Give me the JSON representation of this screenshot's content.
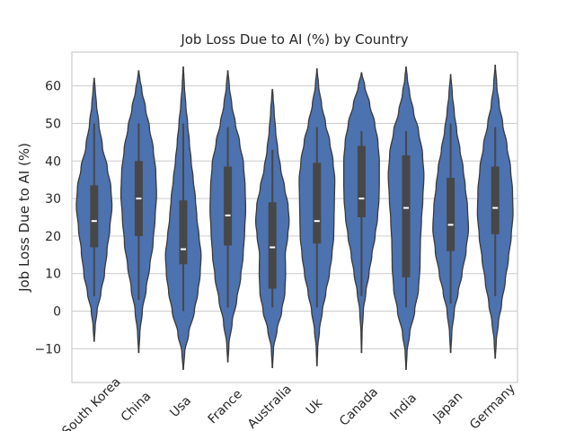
{
  "chart_data": {
    "type": "violin",
    "title": "Job Loss Due to AI (%) by Country",
    "xlabel": "",
    "ylabel": "Job Loss Due to AI (%)",
    "ylim": [
      -19,
      69
    ],
    "yticks": [
      -10,
      0,
      10,
      20,
      30,
      40,
      50,
      60
    ],
    "grid": true,
    "colors": {
      "violin_fill": "#4c72b0",
      "violin_edge": "#3a3a3a",
      "box": "#474747",
      "median": "#ffffff",
      "grid": "#cccccc",
      "frame": "#cccccc"
    },
    "categories": [
      "South Korea",
      "China",
      "Usa",
      "France",
      "Australia",
      "Uk",
      "Canada",
      "India",
      "Japan",
      "Germany"
    ],
    "series": [
      {
        "category": "South Korea",
        "min": -8,
        "max": 62,
        "q1": 17,
        "median": 24,
        "q3": 33.5,
        "whisker_low": 4,
        "whisker_high": 50,
        "shape": [
          [
            -8,
            0.01
          ],
          [
            -4,
            0.06
          ],
          [
            0,
            0.16
          ],
          [
            5,
            0.38
          ],
          [
            10,
            0.58
          ],
          [
            16,
            0.72
          ],
          [
            22,
            0.88
          ],
          [
            28,
            1.0
          ],
          [
            33,
            0.94
          ],
          [
            38,
            0.74
          ],
          [
            44,
            0.46
          ],
          [
            50,
            0.26
          ],
          [
            55,
            0.13
          ],
          [
            59,
            0.06
          ],
          [
            62,
            0.01
          ]
        ]
      },
      {
        "category": "China",
        "min": -11,
        "max": 64,
        "q1": 20,
        "median": 30,
        "q3": 40,
        "whisker_low": 3,
        "whisker_high": 50,
        "shape": [
          [
            -11,
            0.01
          ],
          [
            -6,
            0.06
          ],
          [
            0,
            0.2
          ],
          [
            6,
            0.42
          ],
          [
            12,
            0.62
          ],
          [
            18,
            0.8
          ],
          [
            25,
            0.92
          ],
          [
            31,
            1.0
          ],
          [
            37,
            0.96
          ],
          [
            43,
            0.82
          ],
          [
            49,
            0.6
          ],
          [
            54,
            0.38
          ],
          [
            59,
            0.17
          ],
          [
            62,
            0.06
          ],
          [
            64,
            0.01
          ]
        ]
      },
      {
        "category": "Usa",
        "min": -15.5,
        "max": 65,
        "q1": 12.5,
        "median": 16.5,
        "q3": 29.5,
        "whisker_low": 0,
        "whisker_high": 50,
        "shape": [
          [
            -15.5,
            0.01
          ],
          [
            -11,
            0.08
          ],
          [
            -6,
            0.3
          ],
          [
            0,
            0.62
          ],
          [
            5,
            0.82
          ],
          [
            10,
            0.95
          ],
          [
            15,
            1.0
          ],
          [
            20,
            0.88
          ],
          [
            25,
            0.76
          ],
          [
            30,
            0.68
          ],
          [
            35,
            0.56
          ],
          [
            40,
            0.44
          ],
          [
            45,
            0.34
          ],
          [
            50,
            0.24
          ],
          [
            55,
            0.14
          ],
          [
            60,
            0.06
          ],
          [
            65,
            0.01
          ]
        ]
      },
      {
        "category": "France",
        "min": -13.5,
        "max": 64,
        "q1": 17.5,
        "median": 25.5,
        "q3": 38.5,
        "whisker_low": 1,
        "whisker_high": 49,
        "shape": [
          [
            -13.5,
            0.01
          ],
          [
            -9,
            0.06
          ],
          [
            -3,
            0.24
          ],
          [
            3,
            0.5
          ],
          [
            9,
            0.72
          ],
          [
            15,
            0.86
          ],
          [
            21,
            0.94
          ],
          [
            27,
            1.0
          ],
          [
            33,
            0.97
          ],
          [
            39,
            0.88
          ],
          [
            45,
            0.66
          ],
          [
            50,
            0.42
          ],
          [
            55,
            0.22
          ],
          [
            60,
            0.08
          ],
          [
            64,
            0.01
          ]
        ]
      },
      {
        "category": "Australia",
        "min": -15,
        "max": 59,
        "q1": 6,
        "median": 17,
        "q3": 29,
        "whisker_low": 1,
        "whisker_high": 43,
        "shape": [
          [
            -15,
            0.01
          ],
          [
            -10,
            0.06
          ],
          [
            -5,
            0.26
          ],
          [
            0,
            0.52
          ],
          [
            5,
            0.7
          ],
          [
            10,
            0.74
          ],
          [
            15,
            0.72
          ],
          [
            20,
            0.86
          ],
          [
            24,
            0.94
          ],
          [
            28,
            0.88
          ],
          [
            33,
            0.68
          ],
          [
            38,
            0.46
          ],
          [
            43,
            0.3
          ],
          [
            48,
            0.18
          ],
          [
            53,
            0.1
          ],
          [
            57,
            0.04
          ],
          [
            59,
            0.01
          ]
        ]
      },
      {
        "category": "Uk",
        "min": -14.5,
        "max": 64.5,
        "q1": 18,
        "median": 24,
        "q3": 39.5,
        "whisker_low": 1,
        "whisker_high": 49,
        "shape": [
          [
            -14.5,
            0.01
          ],
          [
            -10,
            0.04
          ],
          [
            -5,
            0.14
          ],
          [
            0,
            0.3
          ],
          [
            5,
            0.5
          ],
          [
            10,
            0.7
          ],
          [
            15,
            0.84
          ],
          [
            20,
            0.94
          ],
          [
            25,
            0.96
          ],
          [
            30,
            0.98
          ],
          [
            35,
            1.0
          ],
          [
            40,
            0.9
          ],
          [
            45,
            0.72
          ],
          [
            50,
            0.48
          ],
          [
            55,
            0.26
          ],
          [
            60,
            0.09
          ],
          [
            64.5,
            0.01
          ]
        ]
      },
      {
        "category": "Canada",
        "min": -11,
        "max": 63.5,
        "q1": 25,
        "median": 30,
        "q3": 44,
        "whisker_low": 4,
        "whisker_high": 48,
        "shape": [
          [
            -11,
            0.01
          ],
          [
            -6,
            0.03
          ],
          [
            0,
            0.1
          ],
          [
            5,
            0.24
          ],
          [
            10,
            0.42
          ],
          [
            15,
            0.58
          ],
          [
            20,
            0.76
          ],
          [
            25,
            0.9
          ],
          [
            30,
            0.98
          ],
          [
            35,
            1.0
          ],
          [
            40,
            1.0
          ],
          [
            45,
            0.92
          ],
          [
            50,
            0.74
          ],
          [
            55,
            0.46
          ],
          [
            60,
            0.18
          ],
          [
            63.5,
            0.01
          ]
        ]
      },
      {
        "category": "India",
        "min": -15.5,
        "max": 65,
        "q1": 9,
        "median": 27.5,
        "q3": 41.5,
        "whisker_low": 1,
        "whisker_high": 48,
        "shape": [
          [
            -15.5,
            0.01
          ],
          [
            -11,
            0.05
          ],
          [
            -6,
            0.2
          ],
          [
            0,
            0.48
          ],
          [
            6,
            0.7
          ],
          [
            12,
            0.78
          ],
          [
            18,
            0.8
          ],
          [
            24,
            0.86
          ],
          [
            30,
            0.94
          ],
          [
            36,
            1.0
          ],
          [
            42,
            0.92
          ],
          [
            48,
            0.7
          ],
          [
            53,
            0.42
          ],
          [
            58,
            0.2
          ],
          [
            62,
            0.07
          ],
          [
            65,
            0.01
          ]
        ]
      },
      {
        "category": "Japan",
        "min": -11,
        "max": 63,
        "q1": 16,
        "median": 23,
        "q3": 35.5,
        "whisker_low": 2,
        "whisker_high": 50,
        "shape": [
          [
            -11,
            0.01
          ],
          [
            -6,
            0.06
          ],
          [
            0,
            0.2
          ],
          [
            5,
            0.42
          ],
          [
            10,
            0.64
          ],
          [
            16,
            0.86
          ],
          [
            22,
            1.0
          ],
          [
            28,
            0.94
          ],
          [
            33,
            0.82
          ],
          [
            38,
            0.7
          ],
          [
            43,
            0.52
          ],
          [
            48,
            0.34
          ],
          [
            53,
            0.2
          ],
          [
            58,
            0.09
          ],
          [
            63,
            0.01
          ]
        ]
      },
      {
        "category": "Germany",
        "min": -12.5,
        "max": 65.5,
        "q1": 20.5,
        "median": 27.5,
        "q3": 38.5,
        "whisker_low": 4,
        "whisker_high": 49,
        "shape": [
          [
            -12.5,
            0.01
          ],
          [
            -8,
            0.06
          ],
          [
            -3,
            0.18
          ],
          [
            2,
            0.36
          ],
          [
            8,
            0.56
          ],
          [
            14,
            0.74
          ],
          [
            20,
            0.9
          ],
          [
            26,
            1.0
          ],
          [
            32,
            0.97
          ],
          [
            38,
            0.86
          ],
          [
            44,
            0.66
          ],
          [
            50,
            0.42
          ],
          [
            55,
            0.22
          ],
          [
            60,
            0.09
          ],
          [
            65.5,
            0.01
          ]
        ]
      }
    ]
  }
}
